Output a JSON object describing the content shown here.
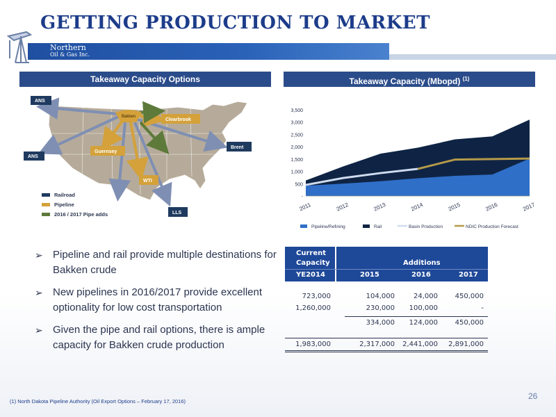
{
  "title": "GETTING PRODUCTION TO MARKET",
  "logo": {
    "line1": "Northern",
    "line2": "Oil & Gas Inc."
  },
  "left_header": "Takeaway Capacity Options",
  "right_header": "Takeaway Capacity (Mbopd)",
  "right_header_note": "(1)",
  "map": {
    "labels": {
      "ans_top": "ANS",
      "ans_bottom": "ANS",
      "bakken": "Bakken",
      "clearbrook": "Clearbrook",
      "guernsey": "Guernsey",
      "brent": "Brent",
      "wti": "WTI",
      "lls": "LLS"
    },
    "legend": [
      "Railroad",
      "Pipeline",
      "2016 / 2017 Pipe adds"
    ],
    "colors": {
      "railroad": "#1f3a5f",
      "pipeline": "#d4a13a",
      "pipe_adds": "#5d7a3a",
      "rail_arrow": "#7f8fb3",
      "land": "#b6ab9a"
    }
  },
  "chart_data": {
    "type": "area",
    "x": [
      "2011",
      "2012",
      "2013",
      "2014",
      "2015",
      "2016",
      "2017"
    ],
    "ylim": [
      0,
      3500
    ],
    "yticks": [
      "-",
      "500",
      "1,000",
      "1,500",
      "2,000",
      "2,500",
      "3,000",
      "3,500"
    ],
    "series": [
      {
        "name": "Pipeline/Refining",
        "kind": "area",
        "color": "#2f6fc8",
        "values": [
          420,
          500,
          600,
          720,
          820,
          870,
          1520
        ]
      },
      {
        "name": "Rail",
        "kind": "area",
        "color": "#0f2444",
        "values": [
          630,
          1200,
          1720,
          1960,
          2300,
          2420,
          3100
        ]
      },
      {
        "name": "Basin Production",
        "kind": "line",
        "color": "#cfdcef",
        "values": [
          450,
          730,
          930,
          1100,
          null,
          null,
          null
        ]
      },
      {
        "name": "NDIC Production Forecast",
        "kind": "line",
        "color": "#b59a4a",
        "values": [
          null,
          null,
          null,
          1100,
          1480,
          1500,
          1520
        ]
      }
    ],
    "legend_position": "bottom"
  },
  "bullets": [
    "Pipeline and rail provide multiple destinations for Bakken crude",
    "New pipelines in 2016/2017 provide excellent optionality for low cost transportation",
    "Given the pipe and rail options, there is ample capacity for Bakken crude production"
  ],
  "table": {
    "header": {
      "current1": "Current",
      "current2": "Capacity",
      "current3": "YE2014",
      "additions": "Additions",
      "years": [
        "2015",
        "2016",
        "2017"
      ]
    },
    "rows": [
      [
        "723,000",
        "104,000",
        "24,000",
        "450,000"
      ],
      [
        "1,260,000",
        "230,000",
        "100,000",
        "-"
      ],
      [
        "",
        "334,000",
        "124,000",
        "450,000"
      ]
    ],
    "total": [
      "1,983,000",
      "2,317,000",
      "2,441,000",
      "2,891,000"
    ]
  },
  "footnote": "(1)    North Dakota Pipeline Authority (Oil Export Options – February 17, 2016)",
  "page_number": "26"
}
